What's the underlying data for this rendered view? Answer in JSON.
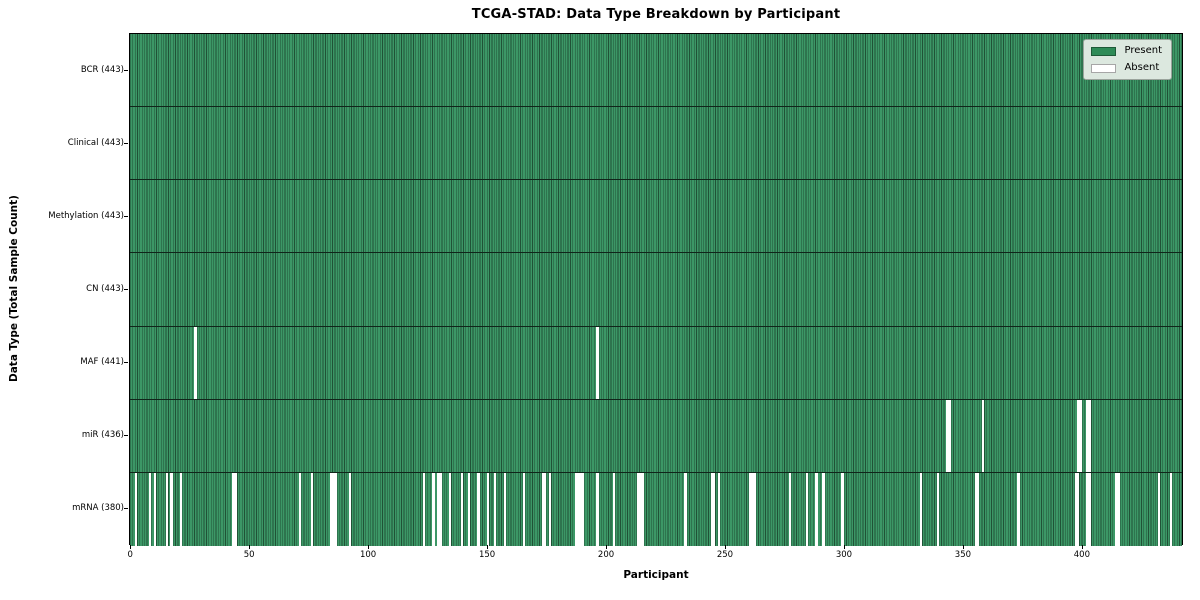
{
  "title": "TCGA-STAD: Data Type Breakdown by Participant",
  "chart_data": {
    "type": "heatmap",
    "title": "TCGA-STAD: Data Type Breakdown by Participant",
    "xlabel": "Participant",
    "ylabel": "Data Type (Total Sample Count)",
    "x_ticks": [
      0,
      50,
      100,
      150,
      200,
      250,
      300,
      350,
      400
    ],
    "x_range": [
      0,
      443
    ],
    "n_participants": 443,
    "grid": false,
    "legend_position": "upper right",
    "legend": [
      {
        "label": "Present",
        "color": "#2e8b57"
      },
      {
        "label": "Absent",
        "color": "#ffffff"
      }
    ],
    "colors": {
      "present_fill": "#2e8b57",
      "present_edge": "#205236",
      "absent_fill": "#ffffff",
      "row_divider": "#10251a",
      "legend_bg": "#dce8df"
    },
    "rows": [
      {
        "name": "bcr",
        "label": "BCR (443)",
        "present_count": 443,
        "absent_participants": []
      },
      {
        "name": "clinical",
        "label": "Clinical (443)",
        "present_count": 443,
        "absent_participants": []
      },
      {
        "name": "methylation",
        "label": "Methylation (443)",
        "present_count": 443,
        "absent_participants": []
      },
      {
        "name": "cn",
        "label": "CN (443)",
        "present_count": 443,
        "absent_participants": []
      },
      {
        "name": "maf",
        "label": "MAF (441)",
        "present_count": 441,
        "absent_participants": [
          27,
          196
        ]
      },
      {
        "name": "mir",
        "label": "miR (436)",
        "present_count": 436,
        "absent_participants": [
          343,
          344,
          358,
          398,
          399,
          402,
          403
        ]
      },
      {
        "name": "mrna",
        "label": "mRNA (380)",
        "present_count": 380,
        "absent_participants": [
          2,
          8,
          10,
          15,
          17,
          21,
          43,
          44,
          71,
          76,
          84,
          85,
          86,
          92,
          123,
          127,
          129,
          130,
          134,
          139,
          142,
          146,
          150,
          153,
          157,
          165,
          173,
          174,
          176,
          187,
          188,
          189,
          190,
          196,
          203,
          213,
          214,
          215,
          233,
          244,
          245,
          247,
          260,
          261,
          262,
          277,
          284,
          288,
          291,
          299,
          332,
          339,
          355,
          356,
          373,
          397,
          398,
          402,
          403,
          414,
          415,
          432,
          437
        ]
      }
    ]
  }
}
